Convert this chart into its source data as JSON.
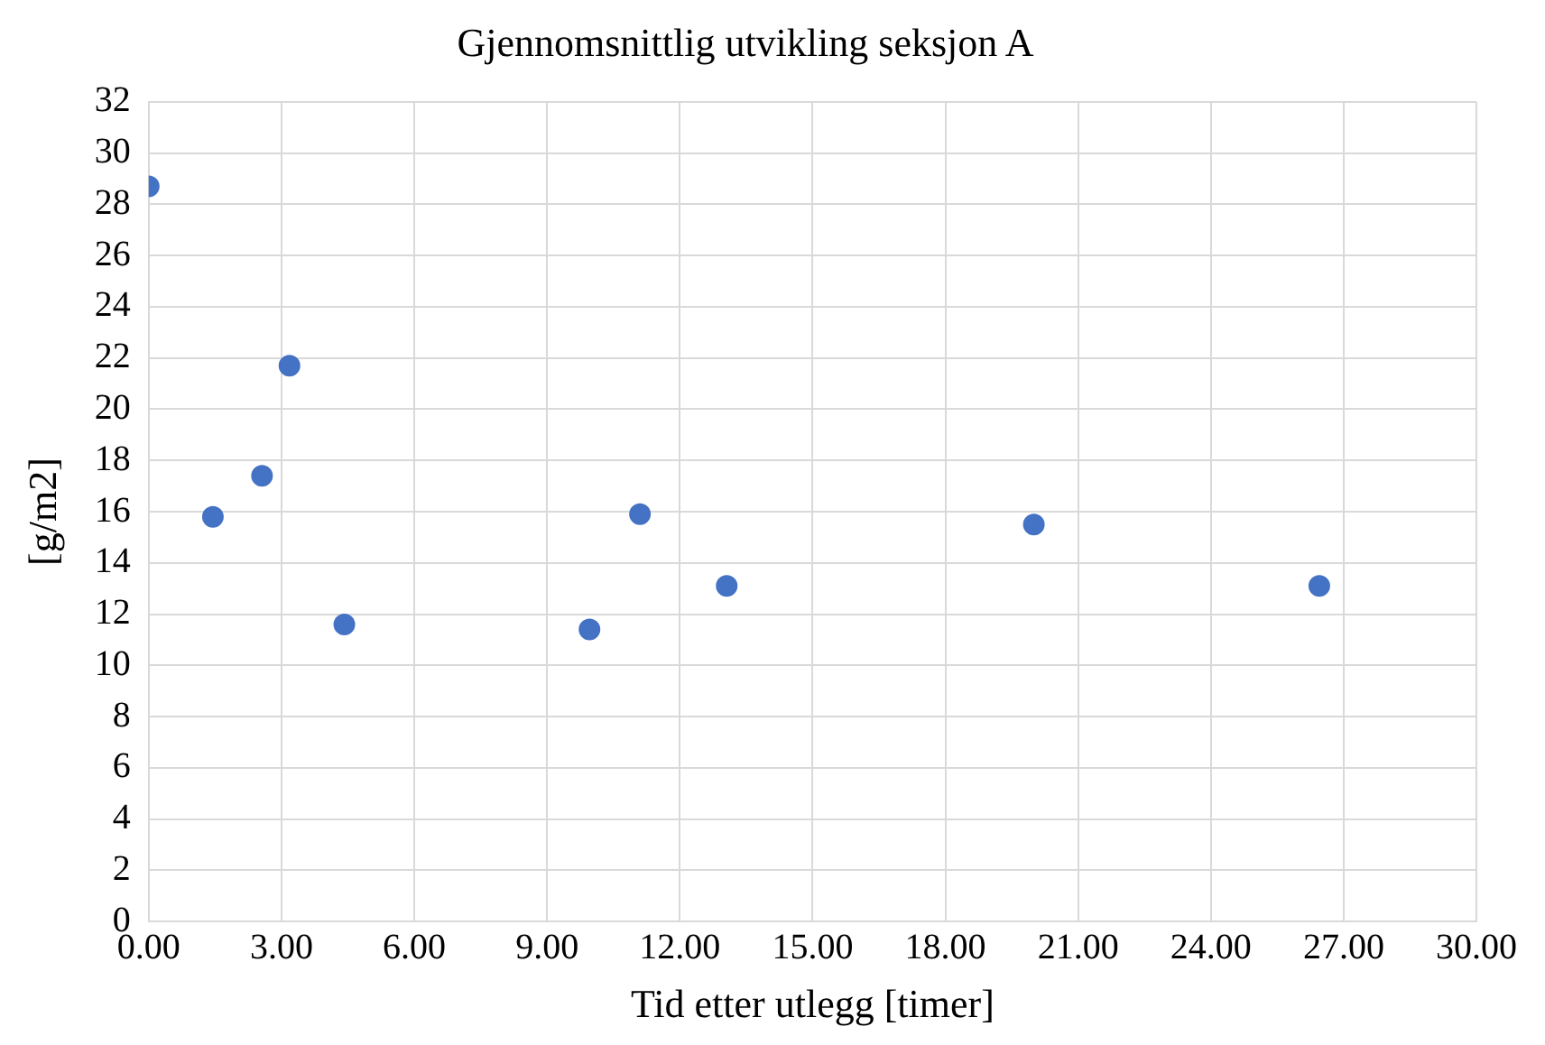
{
  "chart_data": {
    "type": "scatter",
    "title": "Gjennomsnittlig utvikling seksjon A",
    "xlabel": "Tid etter utlegg [timer]",
    "ylabel": "[g/m2]",
    "x": [
      0,
      1.45,
      2.56,
      3.18,
      4.42,
      9.96,
      11.1,
      13.06,
      20.0,
      26.45
    ],
    "series": [
      {
        "color": "#4472c4",
        "values": [
          28.7,
          15.8,
          17.4,
          21.7,
          11.6,
          11.4,
          15.9,
          13.1,
          15.5,
          13.1
        ]
      }
    ],
    "xlim": [
      0,
      30
    ],
    "xticks": [
      {
        "value": 0,
        "label": "0.00"
      },
      {
        "value": 3,
        "label": "3.00"
      },
      {
        "value": 6,
        "label": "6.00"
      },
      {
        "value": 9,
        "label": "9.00"
      },
      {
        "value": 12,
        "label": "12.00"
      },
      {
        "value": 15,
        "label": "15.00"
      },
      {
        "value": 18,
        "label": "18.00"
      },
      {
        "value": 21,
        "label": "21.00"
      },
      {
        "value": 24,
        "label": "24.00"
      },
      {
        "value": 27,
        "label": "27.00"
      },
      {
        "value": 30,
        "label": "30.00"
      }
    ],
    "ylim": [
      0,
      32
    ],
    "yticks": [
      0,
      2,
      4,
      6,
      8,
      10,
      12,
      14,
      16,
      18,
      20,
      22,
      24,
      26,
      28,
      30,
      32
    ],
    "grid": true,
    "legend": false,
    "marker": "circle"
  }
}
